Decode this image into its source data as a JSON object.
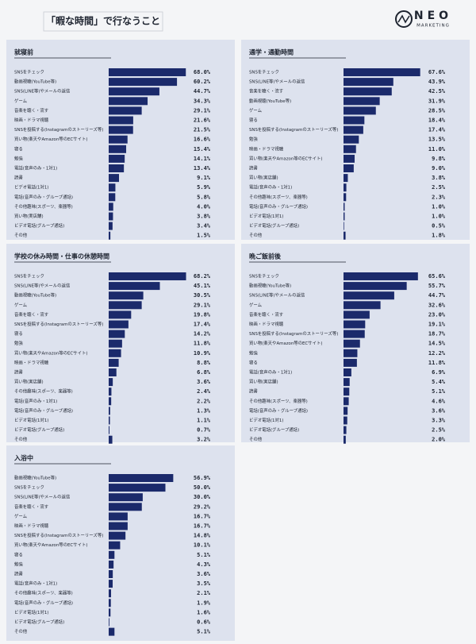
{
  "header": {
    "title": "「暇な時間」で行なうこと",
    "logo": "NEO",
    "logo_sub": "MARKETING"
  },
  "chart_data": [
    {
      "type": "bar",
      "title": "就寝前",
      "color": "#1b2a6b",
      "categories": [
        "SNSをチェック",
        "動画視聴(YouTube等)",
        "SNS(LINE等)やメールの返信",
        "ゲーム",
        "音楽を聴く・流す",
        "映画・ドラマ視聴",
        "SNSを投稿する(Instagramのストーリーズ等)",
        "買い物(楽天やAmazon等のECサイト)",
        "寝る",
        "勉強",
        "電話(音声のみ・1対1)",
        "読書",
        "ビデオ電話(1対1)",
        "電話(音声のみ・グループ通話)",
        "その他趣味(スポーツ、楽器等)",
        "買い物(実店舗)",
        "ビデオ電話(グループ通話)",
        "その他"
      ],
      "values": [
        68.0,
        60.2,
        44.7,
        34.3,
        29.1,
        21.6,
        21.5,
        16.6,
        15.4,
        14.1,
        13.4,
        9.1,
        5.9,
        5.8,
        4.0,
        3.8,
        3.4,
        1.5
      ],
      "value_labels": [
        "68.0%",
        "60.2%",
        "44.7%",
        "34.3%",
        "29.1%",
        "21.6%",
        "21.5%",
        "16.6%",
        "15.4%",
        "14.1%",
        "13.4%",
        "9.1%",
        "5.9%",
        "5.8%",
        "4.0%",
        "3.8%",
        "3.4%",
        "1.5%"
      ]
    },
    {
      "type": "bar",
      "title": "通学・通勤時間",
      "color": "#1b2a6b",
      "categories": [
        "SNSをチェック",
        "SNS(LINE等)やメールの返信",
        "音楽を聴く・流す",
        "動画視聴(YouTube等)",
        "ゲーム",
        "寝る",
        "SNSを投稿する(Instagramのストーリーズ等)",
        "勉強",
        "映画・ドラマ視聴",
        "買い物(楽天やAmazon等のECサイト)",
        "読書",
        "買い物(実店舗)",
        "電話(音声のみ・1対1)",
        "その他趣味(スポーツ、楽器等)",
        "電話(音声のみ・グループ通話)",
        "ビデオ電話(1対1)",
        "ビデオ電話(グループ通話)",
        "その他"
      ],
      "values": [
        67.6,
        43.9,
        42.5,
        31.9,
        28.5,
        18.4,
        17.4,
        13.5,
        11.0,
        9.8,
        9.0,
        3.8,
        2.5,
        2.3,
        1.0,
        1.0,
        0.5,
        1.8
      ],
      "value_labels": [
        "67.6%",
        "43.9%",
        "42.5%",
        "31.9%",
        "28.5%",
        "18.4%",
        "17.4%",
        "13.5%",
        "11.0%",
        "9.8%",
        "9.0%",
        "3.8%",
        "2.5%",
        "2.3%",
        "1.0%",
        "1.0%",
        "0.5%",
        "1.8%"
      ]
    },
    {
      "type": "bar",
      "title": "学校の休み時間・仕事の休憩時間",
      "color": "#1b2a6b",
      "categories": [
        "SNSをチェック",
        "SNS(LINE等)やメールの返信",
        "動画視聴(YouTube等)",
        "ゲーム",
        "音楽を聴く・流す",
        "SNSを投稿する(Instagramのストーリーズ等)",
        "寝る",
        "勉強",
        "買い物(楽天やAmazon等のECサイト)",
        "映画・ドラマ視聴",
        "読書",
        "買い物(実店舗)",
        "その他趣味(スポーツ、楽器等)",
        "電話(音声のみ・1対1)",
        "電話(音声のみ・グループ通話)",
        "ビデオ電話(1対1)",
        "ビデオ電話(グループ通話)",
        "その他"
      ],
      "values": [
        68.2,
        45.1,
        30.5,
        29.1,
        19.8,
        17.4,
        14.2,
        11.8,
        10.9,
        8.8,
        6.8,
        3.6,
        2.4,
        2.2,
        1.3,
        1.1,
        0.7,
        3.2
      ],
      "value_labels": [
        "68.2%",
        "45.1%",
        "30.5%",
        "29.1%",
        "19.8%",
        "17.4%",
        "14.2%",
        "11.8%",
        "10.9%",
        "8.8%",
        "6.8%",
        "3.6%",
        "2.4%",
        "2.2%",
        "1.3%",
        "1.1%",
        "0.7%",
        "3.2%"
      ]
    },
    {
      "type": "bar",
      "title": "晩ご飯前後",
      "color": "#1b2a6b",
      "categories": [
        "SNSをチェック",
        "動画視聴(YouTube等)",
        "SNS(LINE等)やメールの返信",
        "ゲーム",
        "音楽を聴く・流す",
        "映画・ドラマ視聴",
        "SNSを投稿する(Instagramのストーリーズ等)",
        "買い物(楽天やAmazon等のECサイト)",
        "勉強",
        "寝る",
        "電話(音声のみ・1対1)",
        "買い物(実店舗)",
        "読書",
        "その他趣味(スポーツ、楽器等)",
        "電話(音声のみ・グループ通話)",
        "ビデオ電話(1対1)",
        "ビデオ電話(グループ通話)",
        "その他"
      ],
      "values": [
        65.6,
        55.7,
        44.7,
        32.6,
        23.0,
        19.1,
        18.7,
        14.5,
        12.2,
        11.8,
        6.9,
        5.4,
        5.1,
        4.6,
        3.6,
        3.3,
        2.5,
        2.0
      ],
      "value_labels": [
        "65.6%",
        "55.7%",
        "44.7%",
        "32.6%",
        "23.0%",
        "19.1%",
        "18.7%",
        "14.5%",
        "12.2%",
        "11.8%",
        "6.9%",
        "5.4%",
        "5.1%",
        "4.6%",
        "3.6%",
        "3.3%",
        "2.5%",
        "2.0%"
      ]
    },
    {
      "type": "bar",
      "title": "入浴中",
      "color": "#1b2a6b",
      "categories": [
        "動画視聴(YouTube等)",
        "SNSをチェック",
        "SNS(LINE等)やメールの返信",
        "音楽を聴く・流す",
        "ゲーム",
        "映画・ドラマ視聴",
        "SNSを投稿する(Instagramのストーリーズ等)",
        "買い物(楽天やAmazon等のECサイト)",
        "寝る",
        "勉強",
        "読書",
        "電話(音声のみ・1対1)",
        "その他趣味(スポーツ、楽器等)",
        "電話(音声のみ・グループ通話)",
        "ビデオ電話(1対1)",
        "ビデオ電話(グループ通話)",
        "その他"
      ],
      "values": [
        56.9,
        50.0,
        30.0,
        29.2,
        16.7,
        16.7,
        14.8,
        10.1,
        5.1,
        4.3,
        3.6,
        3.5,
        2.1,
        1.9,
        1.6,
        0.6,
        5.1
      ],
      "value_labels": [
        "56.9%",
        "50.0%",
        "30.0%",
        "29.2%",
        "16.7%",
        "16.7%",
        "14.8%",
        "10.1%",
        "5.1%",
        "4.3%",
        "3.6%",
        "3.5%",
        "2.1%",
        "1.9%",
        "1.6%",
        "0.6%",
        "5.1%"
      ]
    }
  ]
}
